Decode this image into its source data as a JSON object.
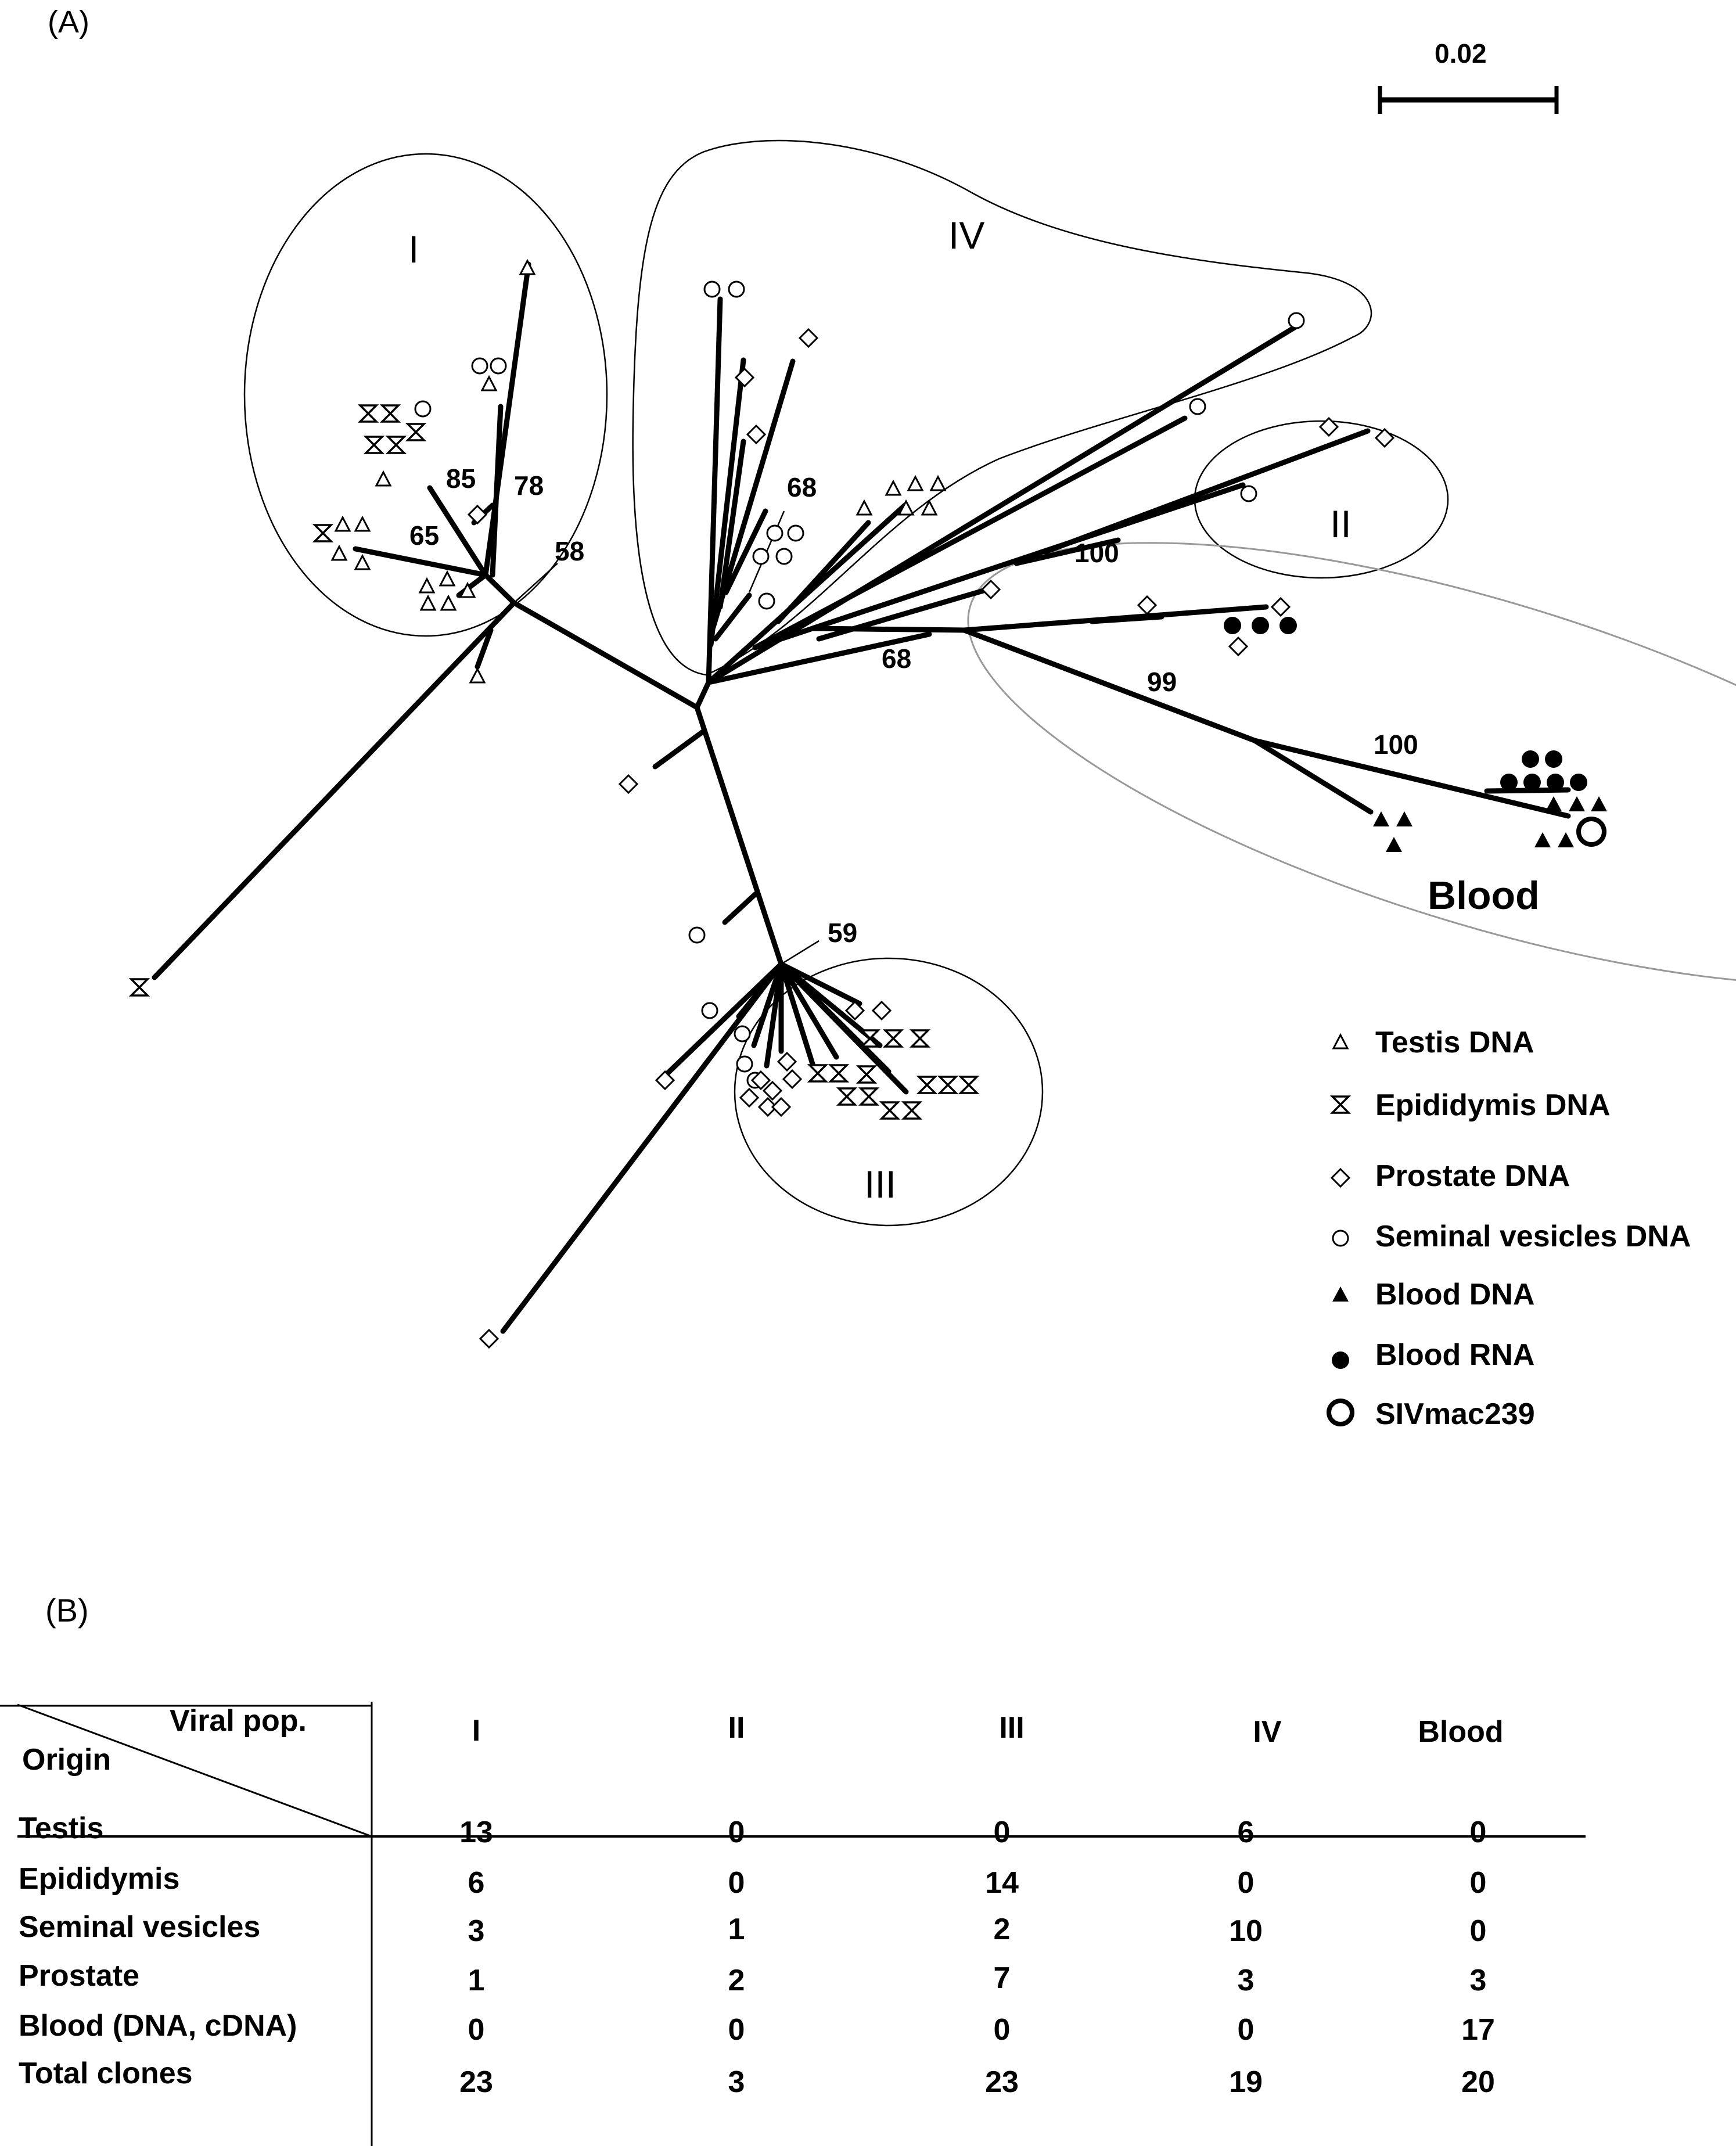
{
  "panel_a_label": "(A)",
  "panel_b_label": "(B)",
  "scale_bar_label": "0.02",
  "clades": [
    "I",
    "II",
    "III",
    "IV",
    "Blood"
  ],
  "bootstrap_values": [
    "85",
    "78",
    "65",
    "58",
    "68",
    "100",
    "68",
    "99",
    "100",
    "59"
  ],
  "legend": [
    {
      "symbol": "open-triangle",
      "label": "Testis DNA"
    },
    {
      "symbol": "hourglass",
      "label": "Epididymis  DNA"
    },
    {
      "symbol": "open-diamond",
      "label": "Prostate DNA"
    },
    {
      "symbol": "open-circle",
      "label": "Seminal vesicles DNA"
    },
    {
      "symbol": "filled-triangle",
      "label": "Blood DNA"
    },
    {
      "symbol": "filled-circle",
      "label": "Blood RNA"
    },
    {
      "symbol": "bold-circle",
      "label": "SIVmac239"
    }
  ],
  "table": {
    "corner_top": "Viral pop.",
    "corner_bottom": "Origin",
    "columns": [
      "I",
      "II",
      "III",
      "IV",
      "Blood"
    ],
    "rows": [
      {
        "origin": "Testis",
        "values": [
          "13",
          "0",
          "0",
          "6",
          "0"
        ]
      },
      {
        "origin": "Epididymis",
        "values": [
          "6",
          "0",
          "14",
          "0",
          "0"
        ]
      },
      {
        "origin": "Seminal vesicles",
        "values": [
          "3",
          "1",
          "2",
          "10",
          "0"
        ]
      },
      {
        "origin": "Prostate",
        "values": [
          "1",
          "2",
          "7",
          "3",
          "3"
        ]
      },
      {
        "origin": "Blood (DNA, cDNA)",
        "values": [
          "0",
          "0",
          "0",
          "0",
          "17"
        ]
      },
      {
        "origin": "Total clones",
        "values": [
          "23",
          "3",
          "23",
          "19",
          "20"
        ]
      }
    ]
  }
}
